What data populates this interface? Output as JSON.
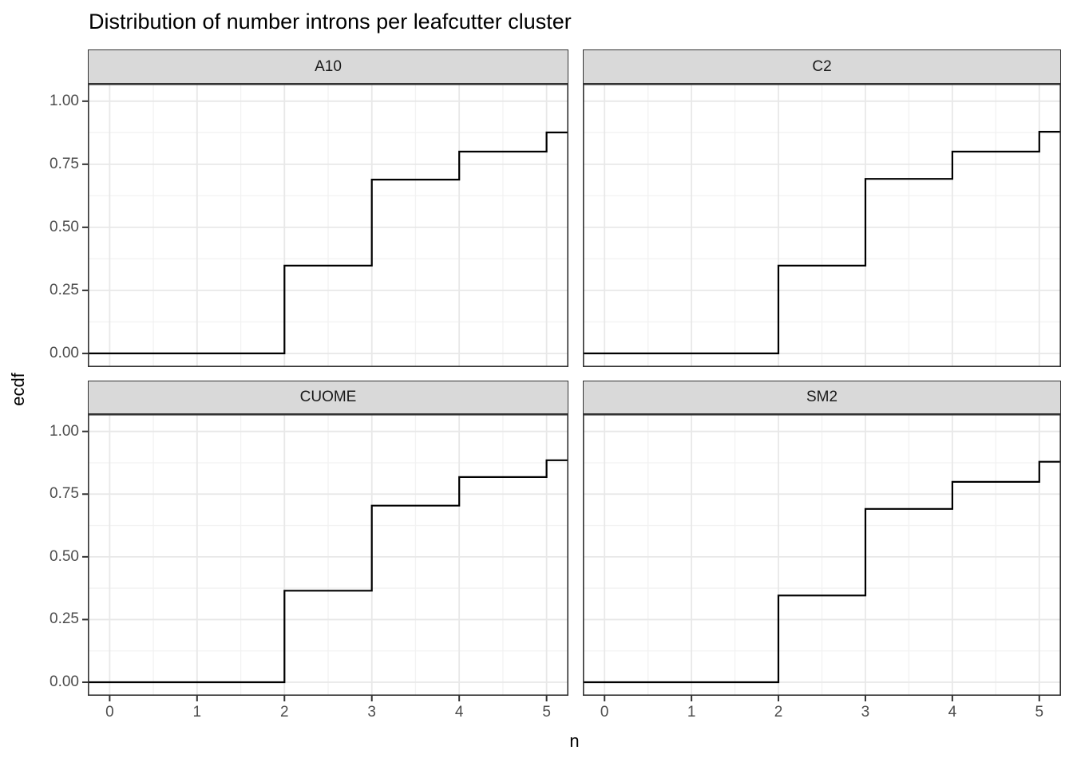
{
  "title": "Distribution of number introns per leafcutter cluster",
  "axes": {
    "x": {
      "label": "n",
      "tick_labels": [
        "0",
        "1",
        "2",
        "3",
        "4",
        "5"
      ],
      "tick_values": [
        0,
        1,
        2,
        3,
        4,
        5
      ],
      "minor_ticks": [
        0.5,
        1.5,
        2.5,
        3.5,
        4.5
      ],
      "range": [
        -0.25,
        5.25
      ]
    },
    "y": {
      "label": "ecdf",
      "tick_labels": [
        "0.00",
        "0.25",
        "0.50",
        "0.75",
        "1.00"
      ],
      "tick_values": [
        0,
        0.25,
        0.5,
        0.75,
        1
      ],
      "minor_ticks": [
        0.125,
        0.375,
        0.625,
        0.875
      ],
      "range": [
        -0.054,
        1.069
      ]
    }
  },
  "colors": {
    "strip_background": "#D9D9D9",
    "strip_border": "#333333",
    "panel_border": "#333333",
    "grid_major": "#E8E8E8",
    "grid_minor": "#F2F2F2",
    "step_line": "#000000",
    "tick_mark": "#333333",
    "tick_text": "#4D4D4D",
    "title_text": "#000000"
  },
  "chart_data": {
    "type": "line",
    "subtype": "step_ecdf",
    "title": "Distribution of number introns per leafcutter cluster",
    "xlabel": "n",
    "ylabel": "ecdf",
    "xlim": [
      -0.25,
      5.25
    ],
    "ylim": [
      -0.054,
      1.069
    ],
    "grid": "major+minor",
    "legend": "none",
    "facets": [
      {
        "label": "A10",
        "jump_x": [
          2,
          3,
          4,
          5
        ],
        "levels": [
          0,
          0.348,
          0.689,
          0.8,
          0.876
        ]
      },
      {
        "label": "C2",
        "jump_x": [
          2,
          3,
          4,
          5
        ],
        "levels": [
          0,
          0.348,
          0.692,
          0.8,
          0.879
        ]
      },
      {
        "label": "CUOME",
        "jump_x": [
          2,
          3,
          4,
          5
        ],
        "levels": [
          0,
          0.365,
          0.704,
          0.818,
          0.885
        ]
      },
      {
        "label": "SM2",
        "jump_x": [
          2,
          3,
          4,
          5
        ],
        "levels": [
          0,
          0.346,
          0.691,
          0.799,
          0.879
        ]
      }
    ]
  }
}
